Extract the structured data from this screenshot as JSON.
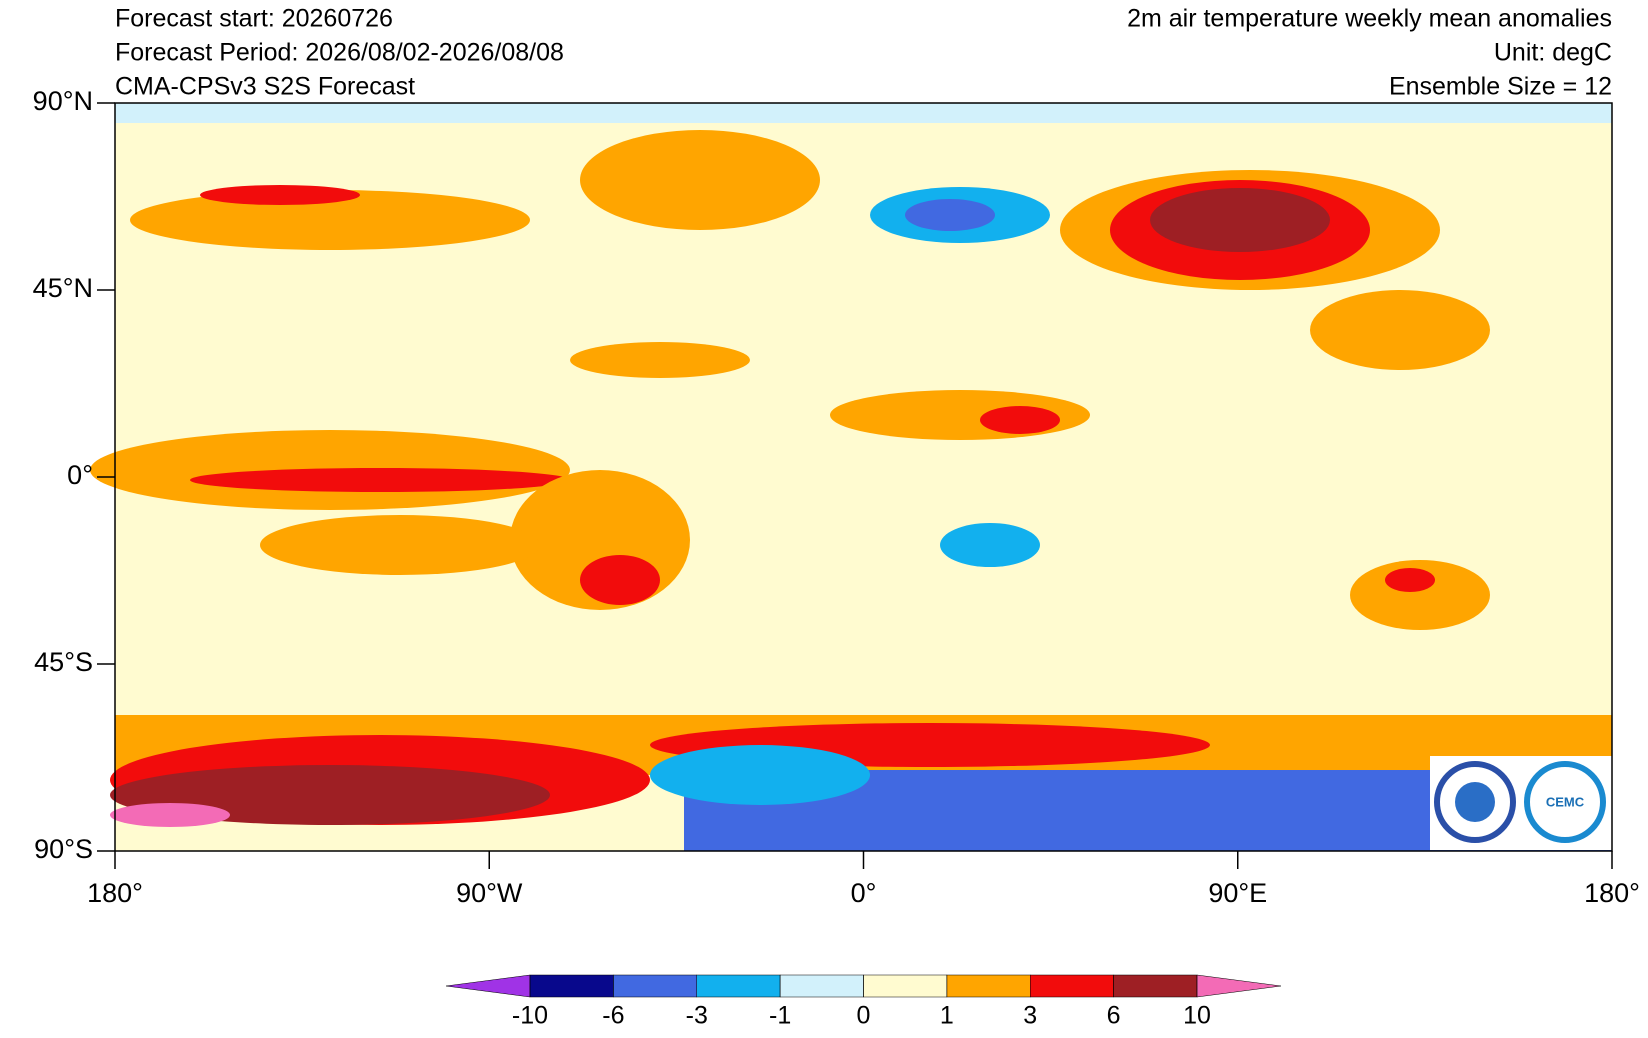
{
  "header": {
    "left": [
      "Forecast start: 20260726",
      "Forecast Period: 2026/08/02-2026/08/08",
      "CMA-CPSv3 S2S Forecast"
    ],
    "right": [
      "2m air temperature weekly mean anomalies",
      "Unit: degC",
      "Ensemble Size = 12"
    ]
  },
  "map": {
    "xlim": [
      -180,
      180
    ],
    "ylim": [
      -90,
      90
    ],
    "xticks": [
      {
        "value": -180,
        "label": "180°"
      },
      {
        "value": -90,
        "label": "90°W"
      },
      {
        "value": 0,
        "label": "0°"
      },
      {
        "value": 90,
        "label": "90°E"
      },
      {
        "value": 180,
        "label": "180°"
      }
    ],
    "yticks": [
      {
        "value": 90,
        "label": "90°N"
      },
      {
        "value": 45,
        "label": "45°N"
      },
      {
        "value": 0,
        "label": "0°"
      },
      {
        "value": -45,
        "label": "45°S"
      },
      {
        "value": -90,
        "label": "90°S"
      }
    ]
  },
  "colorbar": {
    "levels": [
      -10,
      -6,
      -3,
      -1,
      0,
      1,
      3,
      6,
      10
    ],
    "colors": [
      "#a033e6",
      "#08088c",
      "#4169e1",
      "#12b0ee",
      "#d2f1fb",
      "#fffbd0",
      "#ffa500",
      "#f20c0c",
      "#9e1f24",
      "#f36bb6"
    ]
  },
  "logo": {
    "text": "CEMC"
  }
}
